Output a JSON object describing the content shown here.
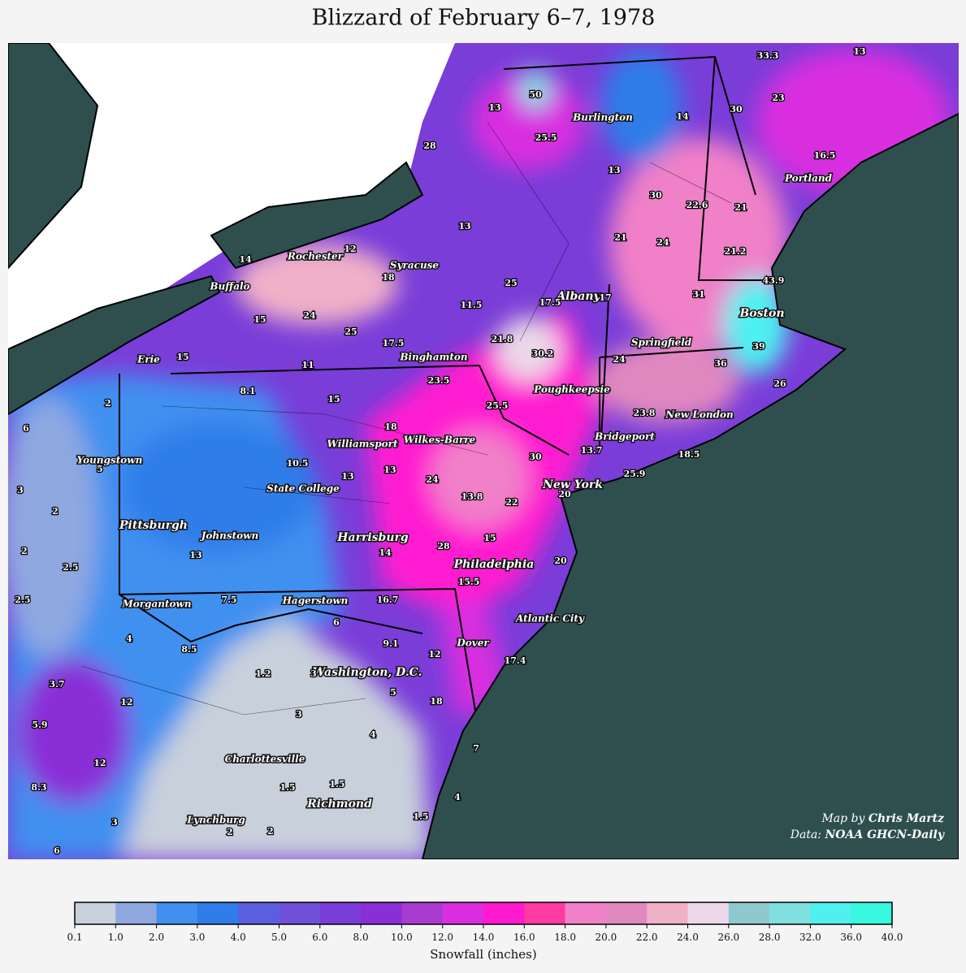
{
  "title": "Blizzard of February 6–7, 1978",
  "credit": {
    "by_label": "Map by",
    "author": "Chris Martz",
    "data_label": "Data:",
    "source": "NOAA GHCN-Daily"
  },
  "cities": [
    "Burlington",
    "Syracuse",
    "Rochester",
    "Buffalo",
    "Albany",
    "Boston",
    "Springfield",
    "Binghamton",
    "Erie",
    "Poughkeepsie",
    "Portland",
    "New London",
    "Bridgeport",
    "Williamsport",
    "Wilkes-Barre",
    "Youngstown",
    "New York",
    "State College",
    "Pittsburgh",
    "Johnstown",
    "Harrisburg",
    "Philadelphia",
    "Morgantown",
    "Hagerstown",
    "Atlantic City",
    "Dover",
    "Washington, D.C.",
    "Charlottesville",
    "Richmond",
    "Lynchburg"
  ],
  "station_values": [
    33.3,
    13,
    50,
    13,
    30,
    23,
    14,
    25.5,
    28,
    16.5,
    13,
    30,
    22.6,
    21,
    13,
    21,
    24,
    21.2,
    12,
    14,
    18,
    25,
    43.9,
    31,
    17,
    17.5,
    11.5,
    24,
    15,
    25,
    17.5,
    21.8,
    39,
    30.2,
    15,
    24,
    11,
    36,
    23.5,
    26,
    8.1,
    15,
    2,
    25.5,
    6,
    18,
    23.8,
    13.7,
    30,
    10.5,
    18.5,
    5,
    13,
    13,
    25.9,
    24,
    3,
    20,
    13.8,
    22,
    2,
    15,
    14,
    28,
    13,
    2,
    20,
    2.5,
    15.5,
    16.7,
    2.5,
    7.5,
    6,
    4,
    9.1,
    8.5,
    12,
    17.4,
    1.2,
    3,
    3.7,
    5,
    18,
    12,
    3,
    5.9,
    4,
    7,
    12,
    8.3,
    1.5,
    1.5,
    4,
    1.5,
    3,
    2,
    2,
    6
  ],
  "colorbar": {
    "label": "Snowfall (inches)",
    "ticks": [
      0.1,
      {
        "value": 1,
        "label": "1.0"
      },
      {
        "value": 2,
        "label": "2.0"
      },
      {
        "value": 3,
        "label": "3.0"
      },
      {
        "value": 4,
        "label": "4.0"
      },
      {
        "value": 5,
        "label": "5.0"
      },
      {
        "value": 6,
        "label": "6.0"
      },
      {
        "value": 8,
        "label": "8.0"
      },
      {
        "value": 10,
        "label": "10.0"
      },
      {
        "value": 12,
        "label": "12.0"
      },
      {
        "value": 14,
        "label": "14.0"
      },
      {
        "value": 16,
        "label": "16.0"
      },
      {
        "value": 18,
        "label": "18.0"
      },
      {
        "value": 20,
        "label": "20.0"
      },
      {
        "value": 22,
        "label": "22.0"
      },
      {
        "value": 24,
        "label": "24.0"
      },
      {
        "value": 26,
        "label": "26.0"
      },
      {
        "value": 28,
        "label": "28.0"
      },
      {
        "value": 32,
        "label": "32.0"
      },
      {
        "value": 36,
        "label": "36.0"
      },
      {
        "value": 40,
        "label": "40.0"
      }
    ],
    "colors": [
      "#c8d0dc",
      "#8fa8e0",
      "#4190f0",
      "#2f7de8",
      "#5a5ee0",
      "#7050d8",
      "#7a3dd8",
      "#8a2ed8",
      "#a83cd0",
      "#d82ee0",
      "#ff1ad0",
      "#ff3aa0",
      "#f080c8",
      "#e088c0",
      "#f0b0c8",
      "#ecd8e8",
      "#90c8d0",
      "#80e0e0",
      "#50f0f0",
      "#38f8e0"
    ]
  }
}
